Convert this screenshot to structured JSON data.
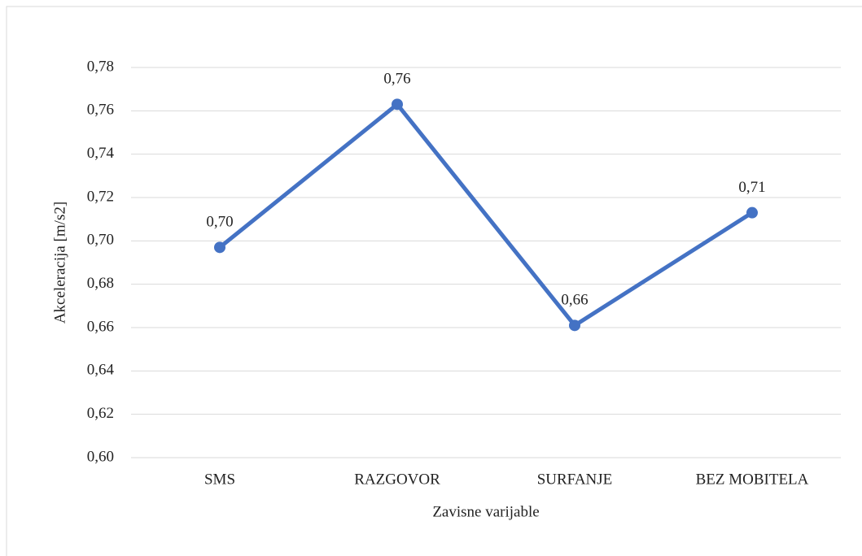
{
  "chart_data": {
    "type": "line",
    "x_label": "Zavisne varijable",
    "y_label": "Akceleracija [m/s2]",
    "categories": [
      "SMS",
      "RAZGOVOR",
      "SURFANJE",
      "BEZ MOBITELA"
    ],
    "series": [
      {
        "name": "Akceleracija",
        "color": "#4472c4",
        "values": [
          0.697,
          0.763,
          0.661,
          0.713
        ],
        "value_labels": [
          "0,70",
          "0,76",
          "0,66",
          "0,71"
        ]
      }
    ],
    "ylim": [
      0.6,
      0.78
    ],
    "yticks": [
      {
        "value": 0.6,
        "label": "0,60"
      },
      {
        "value": 0.62,
        "label": "0,62"
      },
      {
        "value": 0.64,
        "label": "0,64"
      },
      {
        "value": 0.66,
        "label": "0,66"
      },
      {
        "value": 0.68,
        "label": "0,68"
      },
      {
        "value": 0.7,
        "label": "0,70"
      },
      {
        "value": 0.72,
        "label": "0,72"
      },
      {
        "value": 0.74,
        "label": "0,74"
      },
      {
        "value": 0.76,
        "label": "0,76"
      },
      {
        "value": 0.78,
        "label": "0,78"
      }
    ],
    "grid": true
  }
}
